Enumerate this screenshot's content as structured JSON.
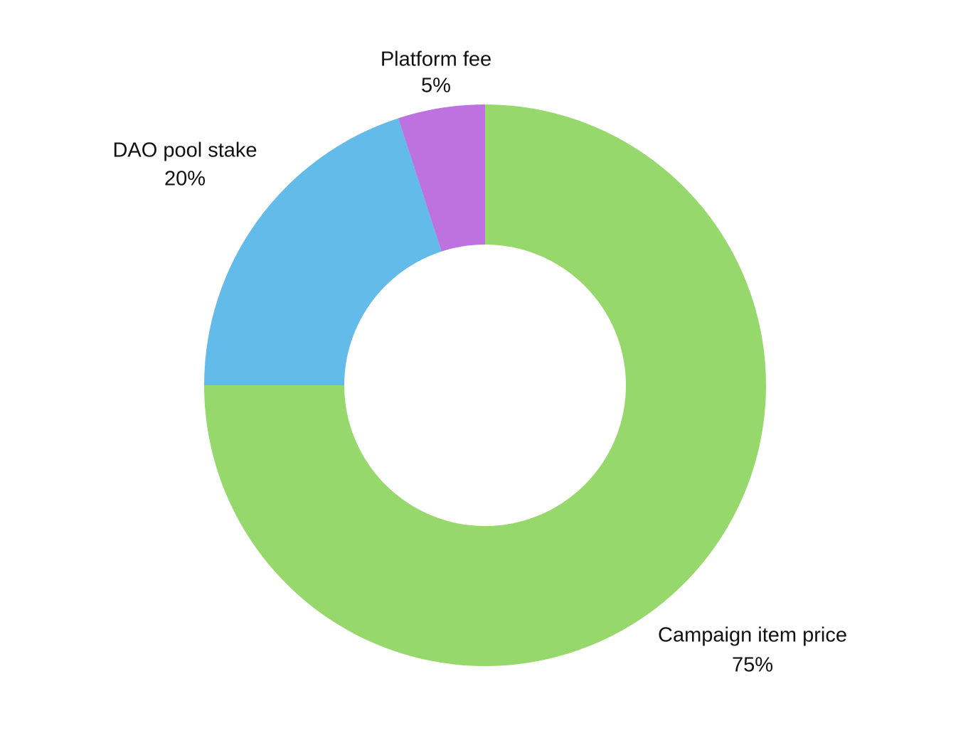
{
  "chart_data": {
    "type": "pie",
    "donut": true,
    "title": "",
    "start_direction": "top",
    "direction": "clockwise",
    "slices": [
      {
        "label": "Campaign item price",
        "value": 75,
        "value_label": "75%",
        "color": "#96d86b"
      },
      {
        "label": "DAO pool stake",
        "value": 20,
        "value_label": "20%",
        "color": "#62bbe8"
      },
      {
        "label": "Platform fee",
        "value": 5,
        "value_label": "5%",
        "color": "#bd72e0"
      }
    ]
  }
}
